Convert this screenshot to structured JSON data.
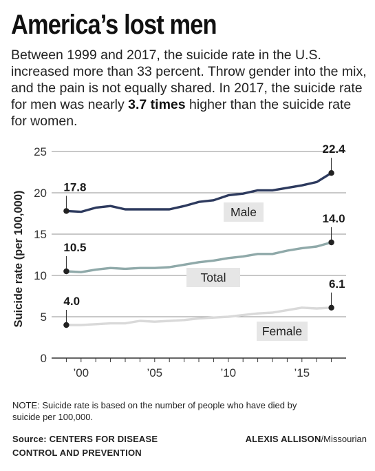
{
  "headline": "America’s lost men",
  "subtitle_parts": {
    "before": "Between 1999 and 2017, the suicide rate in the U.S. increased more than 33 percent. Throw gender into the mix, and the pain is not equally shared. In 2017, the suicide rate for men was nearly ",
    "bold": "3.7 times",
    "after": " higher than the suicide rate for women."
  },
  "note": "NOTE: Suicide rate is based on the number of people who have died by suicide per 100,000.",
  "source": {
    "line1": "Source: CENTERS FOR DISEASE",
    "line2": "CONTROL AND PREVENTION"
  },
  "credit": {
    "name": "ALEXIS ALLISON",
    "outlet": "/Missourian"
  },
  "colors": {
    "male": "#2d3a5e",
    "total": "#8fa9a9",
    "female": "#d9d9d9",
    "label_bg": "#e6e6e6",
    "axis": "#333333"
  },
  "chart_data": {
    "type": "line",
    "title": "",
    "xlabel": "",
    "ylabel": "Suicide rate (per 100,000)",
    "x": [
      1999,
      2000,
      2001,
      2002,
      2003,
      2004,
      2005,
      2006,
      2007,
      2008,
      2009,
      2010,
      2011,
      2012,
      2013,
      2014,
      2015,
      2016,
      2017
    ],
    "xlim": [
      1998,
      2018
    ],
    "ylim": [
      0,
      25
    ],
    "yticks": [
      0,
      5,
      10,
      15,
      20,
      25
    ],
    "xticks": [
      {
        "value": 2000,
        "label": "’00"
      },
      {
        "value": 2005,
        "label": "’05"
      },
      {
        "value": 2010,
        "label": "’10"
      },
      {
        "value": 2015,
        "label": "’15"
      }
    ],
    "grid": "horizontal",
    "series": [
      {
        "name": "Male",
        "color": "#2d3a5e",
        "values": [
          17.8,
          17.7,
          18.2,
          18.4,
          18.0,
          18.0,
          18.0,
          18.0,
          18.4,
          18.9,
          19.1,
          19.7,
          19.9,
          20.3,
          20.3,
          20.6,
          20.9,
          21.3,
          22.4
        ],
        "start_label": "17.8",
        "end_label": "22.4"
      },
      {
        "name": "Total",
        "color": "#8fa9a9",
        "values": [
          10.5,
          10.4,
          10.7,
          10.9,
          10.8,
          10.9,
          10.9,
          11.0,
          11.3,
          11.6,
          11.8,
          12.1,
          12.3,
          12.6,
          12.6,
          13.0,
          13.3,
          13.5,
          14.0
        ],
        "start_label": "10.5",
        "end_label": "14.0"
      },
      {
        "name": "Female",
        "color": "#d9d9d9",
        "values": [
          4.0,
          4.0,
          4.1,
          4.2,
          4.2,
          4.5,
          4.4,
          4.5,
          4.6,
          4.8,
          4.9,
          5.0,
          5.2,
          5.4,
          5.5,
          5.8,
          6.1,
          6.0,
          6.1
        ],
        "start_label": "4.0",
        "end_label": "6.1"
      }
    ]
  }
}
